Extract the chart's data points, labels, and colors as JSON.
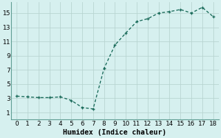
{
  "x": [
    0,
    1,
    2,
    3,
    4,
    5,
    6,
    7,
    8,
    9,
    10,
    11,
    12,
    13,
    14,
    15,
    16,
    17,
    18
  ],
  "y": [
    3.3,
    3.2,
    3.1,
    3.1,
    3.2,
    2.7,
    1.7,
    1.5,
    7.2,
    10.5,
    12.2,
    13.8,
    14.2,
    15.0,
    15.2,
    15.5,
    15.0,
    15.8,
    14.5
  ],
  "line_color": "#1a6b5a",
  "marker_color": "#1a6b5a",
  "bg_color": "#d6f0ef",
  "grid_color": "#b8d4d0",
  "xlabel": "Humidex (Indice chaleur)",
  "xlim": [
    -0.5,
    18.5
  ],
  "ylim": [
    0,
    16.5
  ],
  "xticks": [
    0,
    1,
    2,
    3,
    4,
    5,
    6,
    7,
    8,
    9,
    10,
    11,
    12,
    13,
    14,
    15,
    16,
    17,
    18
  ],
  "yticks": [
    1,
    3,
    5,
    7,
    9,
    11,
    13,
    15
  ],
  "tick_fontsize": 6.5,
  "xlabel_fontsize": 7.5,
  "marker_size": 3,
  "line_width": 1.0
}
